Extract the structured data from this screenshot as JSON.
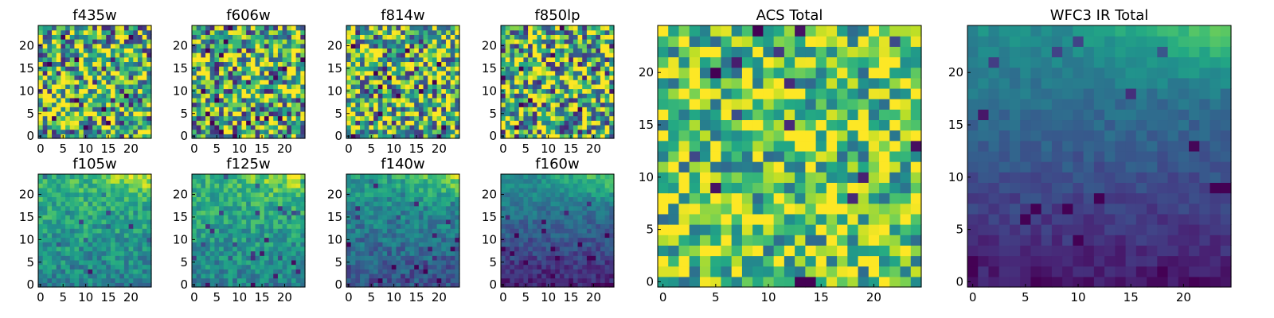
{
  "chart_data": {
    "type": "heatmap",
    "colormap": "viridis",
    "panels": [
      {
        "title": "f435w",
        "xlim": [
          0,
          24
        ],
        "ylim": [
          0,
          24
        ],
        "xticks": [
          0,
          5,
          10,
          15,
          20
        ],
        "yticks": [
          0,
          5,
          10,
          15,
          20
        ],
        "pattern": "noise",
        "mean": 0.64,
        "spread": 0.55,
        "seed": 11
      },
      {
        "title": "f606w",
        "xlim": [
          0,
          24
        ],
        "ylim": [
          0,
          24
        ],
        "xticks": [
          0,
          5,
          10,
          15,
          20
        ],
        "yticks": [
          0,
          5,
          10,
          15,
          20
        ],
        "pattern": "noise",
        "mean": 0.64,
        "spread": 0.55,
        "seed": 23
      },
      {
        "title": "f814w",
        "xlim": [
          0,
          24
        ],
        "ylim": [
          0,
          24
        ],
        "xticks": [
          0,
          5,
          10,
          15,
          20
        ],
        "yticks": [
          0,
          5,
          10,
          15,
          20
        ],
        "pattern": "noise",
        "mean": 0.66,
        "spread": 0.55,
        "seed": 37
      },
      {
        "title": "f850lp",
        "xlim": [
          0,
          24
        ],
        "ylim": [
          0,
          24
        ],
        "xticks": [
          0,
          5,
          10,
          15,
          20
        ],
        "yticks": [
          0,
          5,
          10,
          15,
          20
        ],
        "pattern": "noise",
        "mean": 0.64,
        "spread": 0.55,
        "seed": 41
      },
      {
        "title": "f105w",
        "xlim": [
          0,
          24
        ],
        "ylim": [
          0,
          24
        ],
        "xticks": [
          0,
          5,
          10,
          15,
          20
        ],
        "yticks": [
          0,
          5,
          10,
          15,
          20
        ],
        "pattern": "gradient",
        "base": 0.55,
        "slope": 0.22,
        "corner": 0.35,
        "noise": 0.16,
        "seed": 53
      },
      {
        "title": "f125w",
        "xlim": [
          0,
          24
        ],
        "ylim": [
          0,
          24
        ],
        "xticks": [
          0,
          5,
          10,
          15,
          20
        ],
        "yticks": [
          0,
          5,
          10,
          15,
          20
        ],
        "pattern": "gradient",
        "base": 0.55,
        "slope": 0.22,
        "corner": 0.35,
        "noise": 0.16,
        "seed": 67
      },
      {
        "title": "f140w",
        "xlim": [
          0,
          24
        ],
        "ylim": [
          0,
          24
        ],
        "xticks": [
          0,
          5,
          10,
          15,
          20
        ],
        "yticks": [
          0,
          5,
          10,
          15,
          20
        ],
        "pattern": "gradient",
        "base": 0.4,
        "slope": 0.32,
        "corner": 0.4,
        "noise": 0.14,
        "seed": 71
      },
      {
        "title": "f160w",
        "xlim": [
          0,
          24
        ],
        "ylim": [
          0,
          24
        ],
        "xticks": [
          0,
          5,
          10,
          15,
          20
        ],
        "yticks": [
          0,
          5,
          10,
          15,
          20
        ],
        "pattern": "gradient",
        "base": 0.3,
        "slope": 0.42,
        "corner": 0.35,
        "noise": 0.1,
        "seed": 83
      },
      {
        "title": "ACS Total",
        "xlim": [
          0,
          24
        ],
        "ylim": [
          0,
          24
        ],
        "xticks": [
          0,
          5,
          10,
          15,
          20
        ],
        "yticks": [
          0,
          5,
          10,
          15,
          20
        ],
        "pattern": "noise",
        "mean": 0.72,
        "spread": 0.38,
        "seed": 97
      },
      {
        "title": "WFC3 IR Total",
        "xlim": [
          0,
          24
        ],
        "ylim": [
          0,
          24
        ],
        "xticks": [
          0,
          5,
          10,
          15,
          20
        ],
        "yticks": [
          0,
          5,
          10,
          15,
          20
        ],
        "pattern": "gradient",
        "base": 0.28,
        "slope": 0.42,
        "corner": 0.35,
        "noise": 0.06,
        "seed": 101
      }
    ]
  }
}
